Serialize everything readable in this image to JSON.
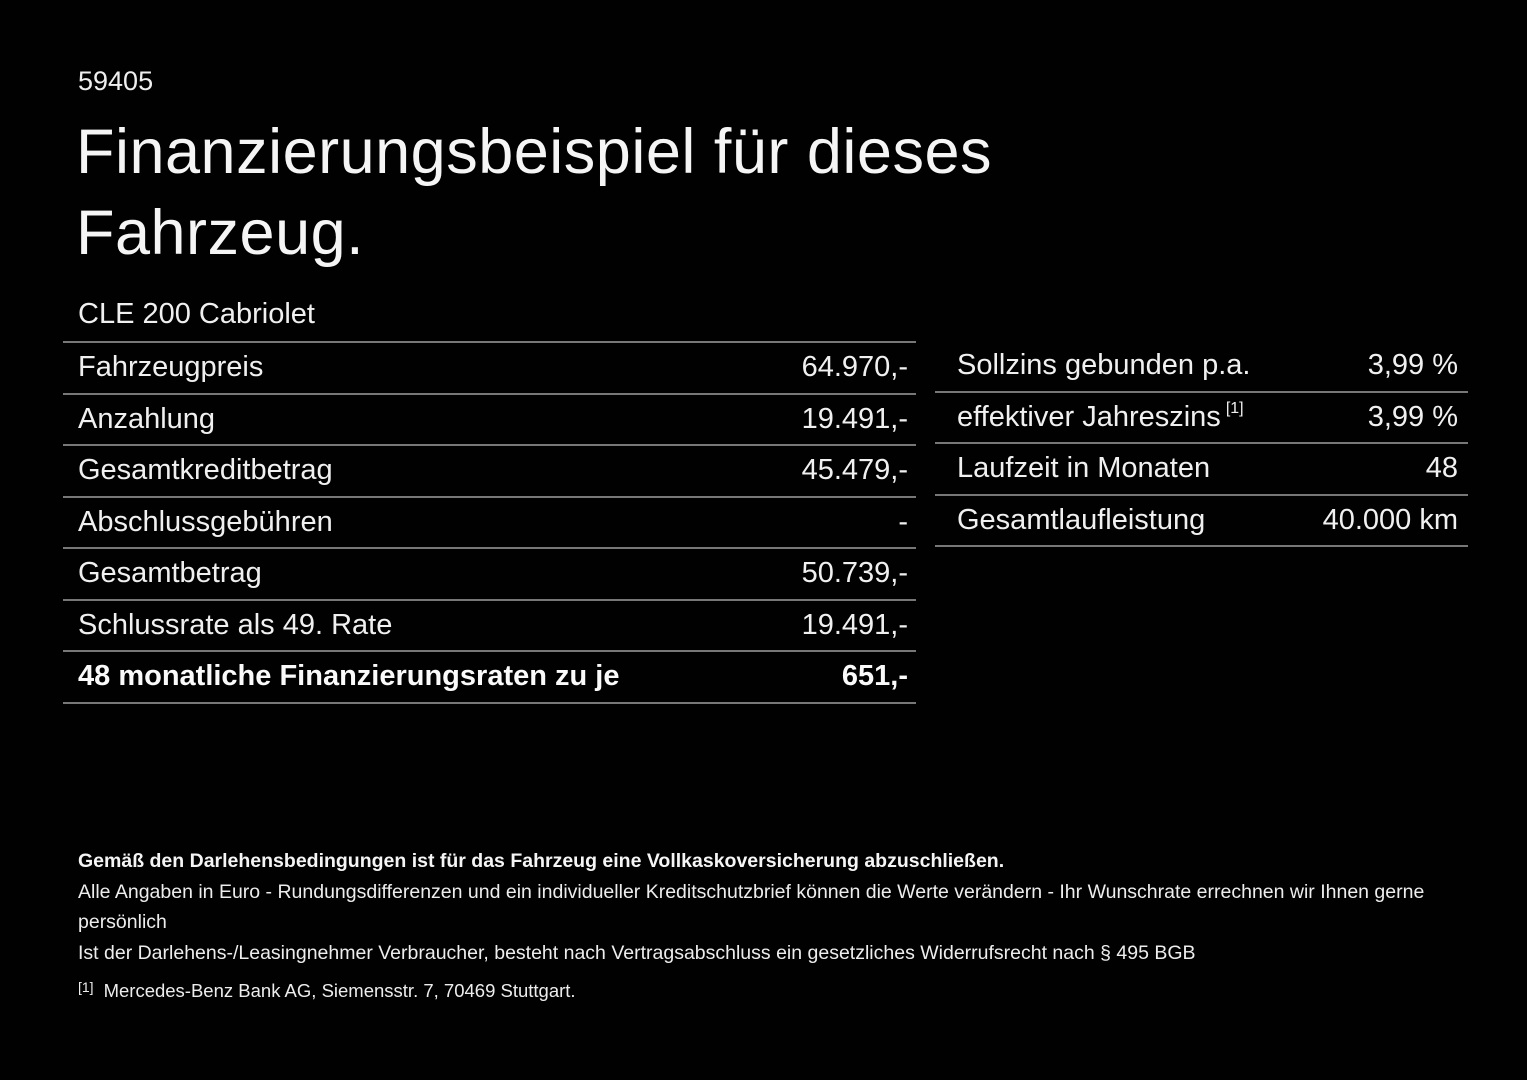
{
  "page": {
    "id_number": "59405",
    "title_line1": "Finanzierungsbeispiel für dieses",
    "title_line2": "Fahrzeug.",
    "model": "CLE 200 Cabriolet"
  },
  "left_table": {
    "rows": [
      {
        "label": "Fahrzeugpreis",
        "value": "64.970,-"
      },
      {
        "label": "Anzahlung",
        "value": "19.491,-"
      },
      {
        "label": "Gesamtkreditbetrag",
        "value": "45.479,-"
      },
      {
        "label": "Abschlussgebühren",
        "value": "-"
      },
      {
        "label": "Gesamtbetrag",
        "value": "50.739,-"
      },
      {
        "label": "Schlussrate als 49. Rate",
        "value": "19.491,-"
      },
      {
        "label": "48 monatliche Finanzierungsraten zu je",
        "value": "651,-"
      }
    ]
  },
  "right_table": {
    "rows": [
      {
        "label": "Sollzins gebunden p.a.",
        "sup": "",
        "value": "3,99 %"
      },
      {
        "label": "effektiver Jahreszins",
        "sup": "[1]",
        "value": "3,99 %"
      },
      {
        "label": "Laufzeit in Monaten",
        "sup": "",
        "value": "48"
      },
      {
        "label": "Gesamtlaufleistung",
        "sup": "",
        "value": "40.000 km"
      }
    ]
  },
  "footnotes": {
    "bold_line": "Gemäß den Darlehensbedingungen ist für das Fahrzeug eine Vollkaskoversicherung abzuschließen.",
    "line2": "Alle Angaben in Euro - Rundungsdifferenzen und ein individueller Kreditschutzbrief können die Werte verändern - Ihr Wunschrate errechnen wir Ihnen gerne persönlich",
    "line3": "Ist der Darlehens-/Leasingnehmer Verbraucher, besteht nach Vertragsabschluss ein gesetzliches Widerrufsrecht nach § 495 BGB",
    "ref_marker": "[1]",
    "ref_text": "Mercedes-Benz Bank AG, Siemensstr. 7, 70469 Stuttgart."
  },
  "colors": {
    "background": "#010101",
    "text": "#f2f2f2",
    "divider": "#777777"
  }
}
